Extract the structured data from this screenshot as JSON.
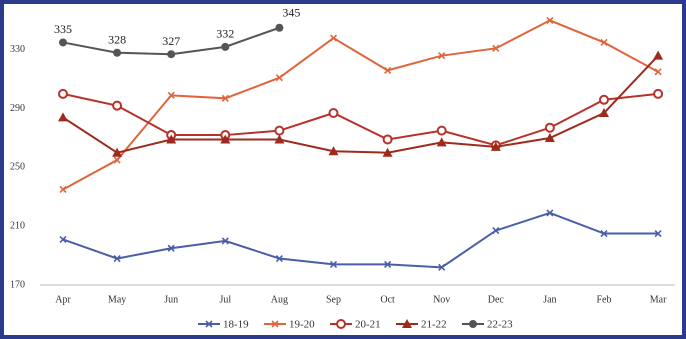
{
  "chart_data": {
    "type": "line",
    "categories": [
      "Apr",
      "May",
      "Jun",
      "Jul",
      "Aug",
      "Sep",
      "Oct",
      "Nov",
      "Dec",
      "Jan",
      "Feb",
      "Mar"
    ],
    "series": [
      {
        "name": "18-19",
        "color": "#4a5ea8",
        "marker": "x",
        "values": [
          201,
          188,
          195,
          200,
          188,
          184,
          184,
          182,
          207,
          219,
          205,
          205
        ]
      },
      {
        "name": "19-20",
        "color": "#e0643c",
        "marker": "x",
        "values": [
          235,
          255,
          299,
          297,
          311,
          338,
          316,
          326,
          331,
          350,
          335,
          315
        ]
      },
      {
        "name": "20-21",
        "color": "#b8322a",
        "marker": "circle",
        "values": [
          300,
          292,
          272,
          272,
          275,
          287,
          269,
          275,
          265,
          277,
          296,
          300
        ]
      },
      {
        "name": "21-22",
        "color": "#9e2a1e",
        "marker": "triangle",
        "values": [
          284,
          260,
          269,
          269,
          269,
          261,
          260,
          267,
          264,
          270,
          287,
          326
        ]
      },
      {
        "name": "22-23",
        "color": "#555555",
        "marker": "dot",
        "show_labels": true,
        "values": [
          335,
          328,
          327,
          332,
          345,
          null,
          null,
          null,
          null,
          null,
          null,
          null
        ]
      }
    ],
    "ylim": [
      170,
      355
    ],
    "yticks": [
      170,
      210,
      250,
      290,
      330
    ],
    "grid": false,
    "legend": "bottom"
  }
}
